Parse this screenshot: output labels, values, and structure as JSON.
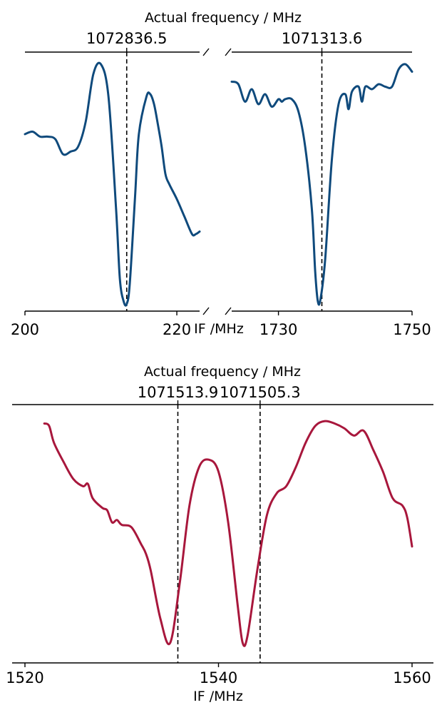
{
  "chart_data": [
    {
      "type": "line",
      "subtype": "broken-x-axis",
      "top_axis_label": "Actual frequency / MHz",
      "xlabel": "IF /MHz",
      "ylabel": "",
      "line_color": "#0f4a7c",
      "panels": [
        {
          "xlim": [
            200,
            223
          ],
          "xticks": [
            200,
            220
          ],
          "top_tick_labels": [
            {
              "x": 213.4,
              "label": "1072836.5"
            }
          ],
          "vlines": [
            213.4
          ],
          "series": [
            {
              "x": [
                200,
                201,
                202,
                203,
                204,
                205,
                206,
                207,
                208,
                209,
                210,
                211,
                212,
                212.5,
                213,
                213.4,
                213.8,
                214.5,
                215,
                216,
                216.5,
                217,
                217.5,
                218,
                218.5,
                219,
                220,
                221,
                222,
                222.5,
                223
              ],
              "y": [
                0.7,
                0.71,
                0.69,
                0.69,
                0.68,
                0.62,
                0.63,
                0.65,
                0.75,
                0.94,
                0.98,
                0.85,
                0.4,
                0.12,
                0.03,
                0.02,
                0.1,
                0.45,
                0.7,
                0.85,
                0.86,
                0.82,
                0.74,
                0.65,
                0.54,
                0.5,
                0.44,
                0.37,
                0.3,
                0.3,
                0.31
              ]
            }
          ]
        },
        {
          "xlim": [
            1723,
            1750
          ],
          "xticks": [
            1730,
            1750
          ],
          "top_tick_labels": [
            {
              "x": 1736.5,
              "label": "1071313.6"
            }
          ],
          "vlines": [
            1736.5
          ],
          "series": [
            {
              "x": [
                1723,
                1724,
                1725,
                1726,
                1727,
                1728,
                1729,
                1730,
                1730.5,
                1731,
                1732,
                1733,
                1734,
                1735,
                1735.5,
                1735.9,
                1736.3,
                1737,
                1738,
                1739,
                1740,
                1740.5,
                1741,
                1742,
                1742.5,
                1743,
                1744,
                1745,
                1746,
                1747,
                1748,
                1749,
                1750
              ],
              "y": [
                0.91,
                0.9,
                0.83,
                0.88,
                0.82,
                0.86,
                0.81,
                0.84,
                0.83,
                0.84,
                0.84,
                0.79,
                0.65,
                0.4,
                0.15,
                0.03,
                0.04,
                0.2,
                0.6,
                0.82,
                0.86,
                0.8,
                0.87,
                0.89,
                0.83,
                0.89,
                0.88,
                0.9,
                0.89,
                0.89,
                0.96,
                0.98,
                0.95
              ]
            }
          ]
        }
      ],
      "ylim": [
        0,
        1
      ]
    },
    {
      "type": "line",
      "top_axis_label": "Actual frequency / MHz",
      "xlabel": "IF /MHz",
      "ylabel": "",
      "line_color": "#a8173c",
      "xlim": [
        1520,
        1560
      ],
      "xticks": [
        1520,
        1540,
        1560
      ],
      "top_tick_labels": [
        {
          "x": 1535.8,
          "label": "1071513.9"
        },
        {
          "x": 1544.3,
          "label": "1071505.3"
        }
      ],
      "vlines": [
        1535.8,
        1544.3
      ],
      "ylim": [
        0,
        1
      ],
      "series": [
        {
          "x": [
            1522.0,
            1522.5,
            1523,
            1524,
            1525,
            1526,
            1526.5,
            1527,
            1528,
            1528.5,
            1529,
            1529.5,
            1530,
            1531,
            1532,
            1532.5,
            1533,
            1534,
            1535,
            1536,
            1537,
            1538,
            1539,
            1540,
            1541,
            1542,
            1542.5,
            1543,
            1544,
            1545,
            1546,
            1547,
            1548,
            1549,
            1550,
            1551,
            1552,
            1553,
            1554,
            1555,
            1556,
            1557,
            1558,
            1559,
            1559.5,
            1560
          ],
          "y": [
            0.96,
            0.95,
            0.88,
            0.8,
            0.73,
            0.7,
            0.71,
            0.65,
            0.61,
            0.6,
            0.55,
            0.56,
            0.54,
            0.53,
            0.46,
            0.42,
            0.35,
            0.15,
            0.05,
            0.3,
            0.62,
            0.78,
            0.81,
            0.76,
            0.55,
            0.2,
            0.05,
            0.08,
            0.35,
            0.58,
            0.67,
            0.7,
            0.78,
            0.88,
            0.95,
            0.97,
            0.96,
            0.94,
            0.91,
            0.93,
            0.85,
            0.76,
            0.65,
            0.62,
            0.57,
            0.45
          ]
        }
      ]
    }
  ]
}
